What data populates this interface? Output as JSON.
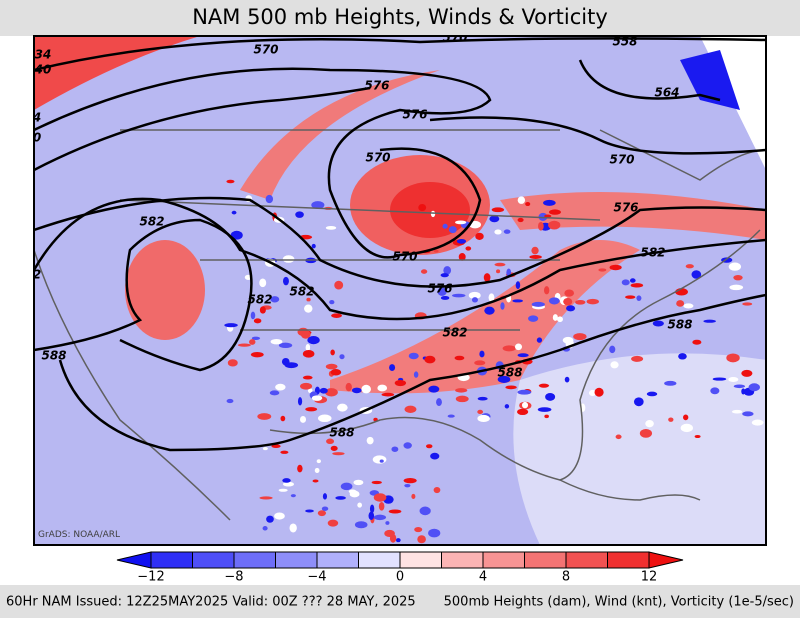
{
  "title": "NAM 500 mb Heights, Winds & Vorticity",
  "credit": "GrADS: NOAA/ARL",
  "contour_labels": [
    "570",
    "570",
    "558",
    "576",
    "576",
    "564",
    "570",
    "570",
    "576",
    "582",
    "570",
    "582",
    "582",
    "582",
    "576",
    "588",
    "582",
    "588",
    "588",
    "588",
    "34",
    "40",
    "4",
    "0",
    "2"
  ],
  "colorbar": {
    "labels": [
      "−12",
      "−8",
      "−4",
      "0",
      "4",
      "8",
      "12"
    ],
    "colors": [
      "#1010f0",
      "#2f2ff5",
      "#4f4ff7",
      "#6e6ef8",
      "#8e8ef9",
      "#b0b0fb",
      "#e2e2ff",
      "#ffe4e4",
      "#fbb4b4",
      "#f79494",
      "#f47474",
      "#f25252",
      "#f03030",
      "#ee1010"
    ]
  },
  "footer": {
    "left": "60Hr NAM Issued: 12Z25MAY2025 Valid: 00Z ??? 28 MAY, 2025",
    "right": "500mb Heights (dam), Wind (knt), Vorticity (1e-5/sec)"
  }
}
